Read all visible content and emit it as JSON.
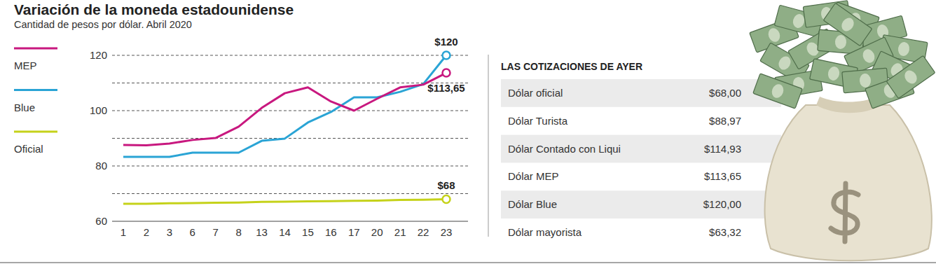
{
  "chart_data": {
    "type": "line",
    "title": "Variación de la moneda estadounidense",
    "subtitle": "Cantidad de pesos por dólar. Abril 2020",
    "categories": [
      "1",
      "2",
      "3",
      "6",
      "7",
      "8",
      "13",
      "14",
      "15",
      "16",
      "17",
      "20",
      "21",
      "22",
      "23"
    ],
    "series": [
      {
        "name": "MEP",
        "color": "#c8187f",
        "marker": "circle",
        "data_labels": true,
        "values": [
          87.6,
          87.5,
          88.1,
          89.4,
          90.1,
          94.2,
          101,
          106.3,
          108.4,
          103.3,
          100,
          104.3,
          108.4,
          109.4,
          113.65
        ],
        "value_labels": [
          null,
          null,
          null,
          null,
          null,
          null,
          null,
          null,
          null,
          null,
          null,
          null,
          null,
          null,
          "$113,65"
        ]
      },
      {
        "name": "Blue",
        "color": "#2aa4d5",
        "marker": "circle",
        "data_labels": true,
        "values": [
          83.3,
          83.3,
          83.3,
          84.8,
          84.8,
          84.8,
          89.1,
          89.9,
          95.7,
          99.5,
          104.8,
          104.8,
          106.8,
          109.6,
          120
        ],
        "value_labels": [
          null,
          null,
          null,
          null,
          null,
          null,
          null,
          null,
          null,
          null,
          null,
          null,
          null,
          null,
          "$120"
        ]
      },
      {
        "name": "Oficial",
        "color": "#c5d21a",
        "marker": "circle",
        "data_labels": true,
        "values": [
          66.3,
          66.3,
          66.5,
          66.6,
          66.7,
          66.8,
          67,
          67.1,
          67.2,
          67.3,
          67.4,
          67.5,
          67.7,
          67.8,
          68
        ],
        "value_labels": [
          null,
          null,
          null,
          null,
          null,
          null,
          null,
          null,
          null,
          null,
          null,
          null,
          null,
          null,
          "$68"
        ]
      }
    ],
    "ylim": [
      60,
      120
    ],
    "yticks": [
      60,
      80,
      100,
      120
    ],
    "minor_yticks": [
      70,
      90,
      110
    ],
    "grid": true,
    "legend": "left"
  },
  "table": {
    "title": "LAS COTIZACIONES DE AYER",
    "rows": [
      [
        "Dólar oficial",
        "$68,00"
      ],
      [
        "Dólar Turista",
        "$88,97"
      ],
      [
        "Dólar Contado con Liqui",
        "$114,93"
      ],
      [
        "Dólar MEP",
        "$113,65"
      ],
      [
        "Dólar Blue",
        "$120,00"
      ],
      [
        "Dólar mayorista",
        "$63,32"
      ]
    ]
  }
}
